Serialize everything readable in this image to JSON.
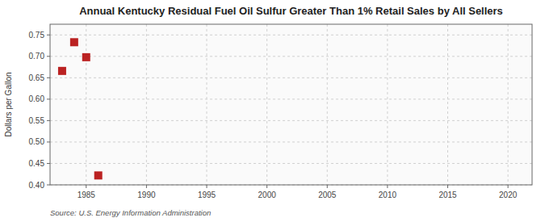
{
  "chart_data": {
    "type": "scatter",
    "title": "Annual Kentucky Residual Fuel Oil Sulfur Greater Than 1% Retail Sales by All Sellers",
    "ylabel": "Dollars per Gallon",
    "source": "Source: U.S. Energy Information Administration",
    "x": [
      1983,
      1984,
      1985,
      1986
    ],
    "values": [
      0.666,
      0.733,
      0.698,
      0.422
    ],
    "color": "#bb2222",
    "marker": "square",
    "xlim": [
      1982,
      2022
    ],
    "ylim": [
      0.4,
      0.775
    ],
    "xticks": [
      1985,
      1990,
      1995,
      2000,
      2005,
      2010,
      2015,
      2020
    ],
    "yticks": [
      {
        "value": 0.4,
        "label": "0.40"
      },
      0.45,
      {
        "value": 0.5,
        "label": "0.50"
      },
      0.55,
      {
        "value": 0.6,
        "label": "0.60"
      },
      0.65,
      {
        "value": 0.7,
        "label": "0.70"
      },
      0.75
    ],
    "grid": true
  }
}
